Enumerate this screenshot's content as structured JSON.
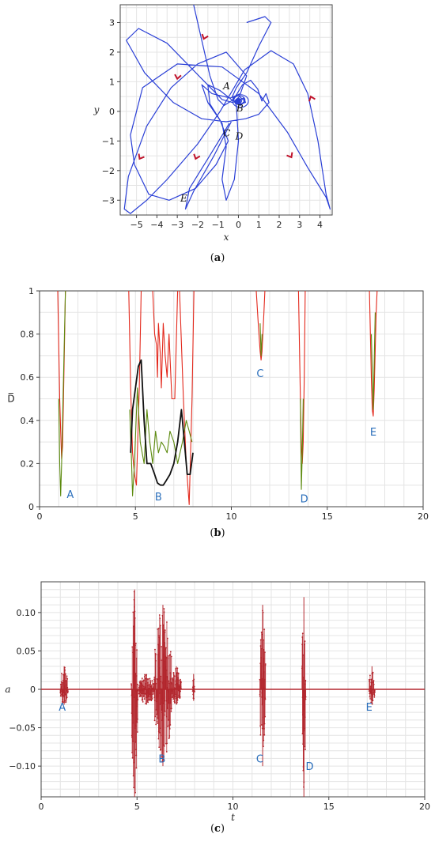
{
  "chart_data": [
    {
      "type": "line",
      "caption_open": "(",
      "caption_letter": "a",
      "caption_close": ")",
      "xlabel": "x",
      "ylabel": "y",
      "xlim": [
        -5.8,
        4.6
      ],
      "ylim": [
        -3.5,
        3.6
      ],
      "xticks": [
        "−5",
        "−4",
        "−3",
        "−2",
        "−1",
        "0",
        "1",
        "2",
        "3",
        "4"
      ],
      "xtick_values": [
        -5,
        -4,
        -3,
        -2,
        -1,
        0,
        1,
        2,
        3,
        4
      ],
      "yticks": [
        "3",
        "2",
        "1",
        "0",
        "−1",
        "−2",
        "−3"
      ],
      "ytick_values": [
        3,
        2,
        1,
        0,
        -1,
        -2,
        -3
      ],
      "grid": true,
      "line_color": "#2a3fd6",
      "arrow_color": "#c0142c",
      "trajectory": [
        [
          -2.2,
          3.6
        ],
        [
          -1.8,
          2.4
        ],
        [
          -1.4,
          1.2
        ],
        [
          -1.0,
          0.4
        ],
        [
          -0.7,
          0.2
        ],
        [
          -0.35,
          0.35
        ],
        [
          -0.15,
          0.5
        ],
        [
          0.2,
          0.9
        ],
        [
          0.6,
          1.05
        ],
        [
          0.95,
          0.75
        ],
        [
          1.15,
          0.35
        ],
        [
          1.35,
          0.6
        ],
        [
          1.5,
          0.3
        ],
        [
          1.0,
          -0.1
        ],
        [
          0.35,
          -0.25
        ],
        [
          -0.6,
          -0.35
        ],
        [
          -1.8,
          -0.25
        ],
        [
          -3.2,
          0.3
        ],
        [
          -4.6,
          1.3
        ],
        [
          -5.5,
          2.4
        ],
        [
          -4.9,
          2.8
        ],
        [
          -3.5,
          2.3
        ],
        [
          -1.8,
          1.1
        ],
        [
          -0.8,
          0.4
        ],
        [
          -0.3,
          0.3
        ],
        [
          -0.05,
          0.35
        ],
        [
          0.25,
          0.45
        ],
        [
          0.35,
          0.3
        ],
        [
          0.1,
          0.25
        ],
        [
          -0.1,
          0.4
        ],
        [
          0.05,
          0.5
        ],
        [
          0.3,
          0.35
        ],
        [
          0.1,
          0.2
        ],
        [
          -0.25,
          0.35
        ],
        [
          -0.9,
          0.7
        ],
        [
          -1.5,
          0.9
        ],
        [
          -1.4,
          0.25
        ],
        [
          -0.9,
          -0.3
        ],
        [
          -0.5,
          -1.0
        ],
        [
          -1.1,
          -1.8
        ],
        [
          -2.1,
          -2.6
        ],
        [
          -3.4,
          -3.0
        ],
        [
          -4.4,
          -2.8
        ],
        [
          -5.1,
          -1.8
        ],
        [
          -5.3,
          -0.8
        ],
        [
          -4.7,
          0.8
        ],
        [
          -3.0,
          1.6
        ],
        [
          -0.8,
          1.5
        ],
        [
          1.0,
          0.6
        ],
        [
          2.4,
          -0.7
        ],
        [
          3.4,
          -1.9
        ],
        [
          4.3,
          -2.9
        ],
        [
          4.5,
          -3.3
        ],
        [
          4.3,
          -2.8
        ],
        [
          3.9,
          -1.0
        ],
        [
          3.4,
          0.6
        ],
        [
          2.7,
          1.6
        ],
        [
          1.6,
          2.05
        ],
        [
          0.3,
          1.4
        ],
        [
          -0.9,
          0.0
        ],
        [
          -2.0,
          -1.1
        ],
        [
          -3.5,
          -2.3
        ],
        [
          -4.5,
          -3.0
        ],
        [
          -5.3,
          -3.45
        ],
        [
          -5.6,
          -3.3
        ],
        [
          -5.4,
          -2.2
        ],
        [
          -4.5,
          -0.5
        ],
        [
          -3.3,
          0.8
        ],
        [
          -2.0,
          1.6
        ],
        [
          -0.6,
          2.0
        ],
        [
          0.4,
          1.2
        ],
        [
          0.1,
          0.6
        ],
        [
          -0.4,
          0.45
        ],
        [
          -1.3,
          0.6
        ],
        [
          -1.8,
          0.9
        ],
        [
          -1.5,
          0.3
        ],
        [
          -0.8,
          -0.4
        ],
        [
          -0.6,
          -1.2
        ],
        [
          -0.8,
          -2.3
        ],
        [
          -0.6,
          -3.0
        ],
        [
          -0.2,
          -2.3
        ],
        [
          0.0,
          -1.0
        ],
        [
          -0.1,
          0.2
        ],
        [
          -0.3,
          0.5
        ],
        [
          -0.1,
          0.8
        ],
        [
          0.4,
          1.3
        ],
        [
          1.0,
          2.2
        ],
        [
          1.6,
          3.0
        ],
        [
          1.3,
          3.2
        ],
        [
          0.4,
          3.0
        ]
      ],
      "segment_CE": [
        [
          -0.35,
          -0.35
        ],
        [
          -1.2,
          -1.5
        ],
        [
          -2.2,
          -2.7
        ],
        [
          -2.6,
          -3.3
        ],
        [
          -2.4,
          -2.6
        ],
        [
          -1.5,
          -1.6
        ],
        [
          -0.7,
          -0.7
        ],
        [
          -0.45,
          -0.4
        ]
      ],
      "arrows": [
        {
          "x": -1.7,
          "y": 2.45,
          "angle": 110
        },
        {
          "x": -3.0,
          "y": 1.1,
          "angle": 100
        },
        {
          "x": 3.55,
          "y": 0.5,
          "angle": 250
        },
        {
          "x": -4.85,
          "y": -1.6,
          "angle": 120
        },
        {
          "x": -2.1,
          "y": -1.6,
          "angle": 110
        },
        {
          "x": 2.6,
          "y": -1.55,
          "angle": 60
        }
      ],
      "annotations": [
        {
          "text": "A",
          "x": -0.75,
          "y": 0.75
        },
        {
          "text": "B",
          "x": -0.1,
          "y": 0.0
        },
        {
          "text": "C",
          "x": -0.75,
          "y": -0.85
        },
        {
          "text": "D",
          "x": -0.15,
          "y": -0.95
        },
        {
          "text": "E",
          "x": -2.85,
          "y": -3.05
        }
      ]
    },
    {
      "type": "line",
      "caption_open": "(",
      "caption_letter": "b",
      "caption_close": ")",
      "ylabel": "D̅",
      "xlim": [
        0,
        20
      ],
      "ylim": [
        0,
        1
      ],
      "xticks": [
        "0",
        "5",
        "10",
        "15",
        "20"
      ],
      "xtick_values": [
        0,
        5,
        10,
        15,
        20
      ],
      "yticks": [
        "1",
        "0.8",
        "0.6",
        "0.4",
        "0.2",
        "0"
      ],
      "ytick_values": [
        1,
        0.8,
        0.6,
        0.4,
        0.2,
        0
      ],
      "grid": true,
      "series": [
        {
          "color": "#e3281c",
          "values": [
            [
              0.95,
              1.0
            ],
            [
              1.05,
              0.5
            ],
            [
              1.1,
              0.35
            ],
            [
              1.15,
              0.22
            ],
            [
              1.2,
              0.28
            ],
            [
              1.3,
              0.75
            ],
            [
              1.35,
              1.0
            ],
            null,
            [
              4.65,
              1.0
            ],
            [
              4.75,
              0.55
            ],
            [
              4.85,
              0.25
            ],
            [
              4.95,
              0.15
            ],
            [
              5.05,
              0.1
            ],
            [
              5.2,
              0.55
            ],
            [
              5.3,
              1.0
            ],
            null,
            [
              5.9,
              1.0
            ],
            [
              6.0,
              0.8
            ],
            [
              6.1,
              0.75
            ],
            [
              6.15,
              0.6
            ],
            [
              6.2,
              0.85
            ],
            [
              6.3,
              0.7
            ],
            [
              6.35,
              0.55
            ],
            [
              6.45,
              0.85
            ],
            [
              6.55,
              0.7
            ],
            [
              6.65,
              0.6
            ],
            [
              6.75,
              0.8
            ],
            [
              6.9,
              0.5
            ],
            [
              7.05,
              0.5
            ],
            [
              7.2,
              1.0
            ],
            null,
            [
              7.3,
              1.0
            ],
            [
              7.5,
              0.5
            ],
            [
              7.65,
              0.2
            ],
            [
              7.8,
              0.01
            ],
            [
              7.95,
              0.5
            ],
            [
              8.05,
              1.0
            ],
            null,
            [
              11.3,
              1.0
            ],
            [
              11.4,
              0.85
            ],
            [
              11.5,
              0.72
            ],
            [
              11.55,
              0.68
            ],
            [
              11.6,
              0.72
            ],
            [
              11.7,
              0.9
            ],
            [
              11.75,
              1.0
            ],
            null,
            [
              13.5,
              1.0
            ],
            [
              13.6,
              0.5
            ],
            [
              13.65,
              0.3
            ],
            [
              13.7,
              0.2
            ],
            [
              13.75,
              0.3
            ],
            [
              13.8,
              0.6
            ],
            [
              13.85,
              1.0
            ],
            null,
            [
              17.2,
              1.0
            ],
            [
              17.3,
              0.6
            ],
            [
              17.35,
              0.45
            ],
            [
              17.4,
              0.42
            ],
            [
              17.45,
              0.55
            ],
            [
              17.55,
              0.9
            ],
            [
              17.6,
              1.0
            ]
          ]
        },
        {
          "color": "#5c8a0e",
          "values": [
            [
              1.0,
              0.5
            ],
            [
              1.05,
              0.2
            ],
            [
              1.1,
              0.05
            ],
            [
              1.15,
              0.2
            ],
            [
              1.25,
              0.6
            ],
            [
              1.35,
              1.0
            ],
            null,
            [
              4.7,
              0.45
            ],
            [
              4.8,
              0.2
            ],
            [
              4.85,
              0.05
            ],
            [
              4.95,
              0.2
            ],
            [
              5.1,
              0.55
            ],
            [
              5.25,
              0.3
            ],
            [
              5.45,
              0.2
            ],
            [
              5.6,
              0.45
            ],
            [
              5.75,
              0.3
            ],
            [
              5.9,
              0.2
            ],
            [
              6.05,
              0.35
            ],
            [
              6.2,
              0.25
            ],
            [
              6.35,
              0.3
            ],
            [
              6.5,
              0.28
            ],
            [
              6.65,
              0.25
            ],
            [
              6.8,
              0.35
            ],
            [
              7.0,
              0.3
            ],
            [
              7.2,
              0.2
            ],
            [
              7.45,
              0.3
            ],
            [
              7.65,
              0.4
            ],
            [
              7.8,
              0.35
            ],
            [
              7.95,
              0.3
            ],
            null,
            [
              11.5,
              0.85
            ],
            [
              11.55,
              0.7
            ],
            [
              11.6,
              0.8
            ],
            null,
            [
              13.6,
              0.5
            ],
            [
              13.65,
              0.08
            ],
            [
              13.7,
              0.25
            ],
            [
              13.75,
              0.5
            ],
            null,
            [
              17.3,
              0.8
            ],
            [
              17.4,
              0.45
            ],
            [
              17.5,
              0.9
            ]
          ]
        },
        {
          "color": "#111111",
          "values": [
            [
              4.75,
              0.25
            ],
            [
              4.85,
              0.45
            ],
            [
              5.0,
              0.55
            ],
            [
              5.15,
              0.65
            ],
            [
              5.3,
              0.68
            ],
            [
              5.45,
              0.4
            ],
            [
              5.6,
              0.2
            ],
            [
              5.8,
              0.2
            ],
            [
              6.0,
              0.15
            ],
            [
              6.15,
              0.11
            ],
            [
              6.3,
              0.1
            ],
            [
              6.45,
              0.1
            ],
            [
              6.6,
              0.12
            ],
            [
              6.8,
              0.15
            ],
            [
              7.0,
              0.2
            ],
            [
              7.2,
              0.3
            ],
            [
              7.4,
              0.45
            ],
            [
              7.55,
              0.3
            ],
            [
              7.7,
              0.15
            ],
            [
              7.85,
              0.15
            ],
            [
              8.0,
              0.25
            ]
          ]
        }
      ],
      "annotations": [
        {
          "text": "A",
          "x": 1.6,
          "y": 0.04
        },
        {
          "text": "B",
          "x": 6.2,
          "y": 0.03
        },
        {
          "text": "C",
          "x": 11.5,
          "y": 0.6
        },
        {
          "text": "D",
          "x": 13.8,
          "y": 0.02
        },
        {
          "text": "E",
          "x": 17.4,
          "y": 0.33
        }
      ]
    },
    {
      "type": "scatter",
      "caption_open": "(",
      "caption_letter": "c",
      "caption_close": ")",
      "xlabel": "t",
      "ylabel": "a",
      "xlim": [
        0,
        20
      ],
      "ylim": [
        -0.14,
        0.14
      ],
      "xticks": [
        "0",
        "5",
        "10",
        "15",
        "20"
      ],
      "xtick_values": [
        0,
        5,
        10,
        15,
        20
      ],
      "yticks": [
        "0.10",
        "0.05",
        "0",
        "−0.05",
        "−0.10"
      ],
      "ytick_values": [
        0.1,
        0.05,
        0,
        -0.05,
        -0.1
      ],
      "grid": true,
      "color": "#b3272e",
      "bursts": [
        {
          "t0": 1.0,
          "t1": 1.4,
          "min": -0.02,
          "max": 0.03
        },
        {
          "t0": 4.7,
          "t1": 5.05,
          "min": -0.14,
          "max": 0.13
        },
        {
          "t0": 5.1,
          "t1": 5.9,
          "min": -0.02,
          "max": 0.02
        },
        {
          "t0": 5.9,
          "t1": 6.8,
          "min": -0.1,
          "max": 0.11
        },
        {
          "t0": 6.8,
          "t1": 7.3,
          "min": -0.02,
          "max": 0.03
        },
        {
          "t0": 7.9,
          "t1": 8.0,
          "min": -0.015,
          "max": 0.02
        },
        {
          "t0": 11.4,
          "t1": 11.7,
          "min": -0.1,
          "max": 0.11
        },
        {
          "t0": 13.6,
          "t1": 13.8,
          "min": -0.14,
          "max": 0.12
        },
        {
          "t0": 17.1,
          "t1": 17.4,
          "min": -0.02,
          "max": 0.03
        }
      ],
      "annotations": [
        {
          "text": "A",
          "x": 1.1,
          "y": -0.028
        },
        {
          "text": "B",
          "x": 6.3,
          "y": -0.095
        },
        {
          "text": "C",
          "x": 11.4,
          "y": -0.095
        },
        {
          "text": "D",
          "x": 14.0,
          "y": -0.105
        },
        {
          "text": "E",
          "x": 17.1,
          "y": -0.028
        }
      ]
    }
  ]
}
